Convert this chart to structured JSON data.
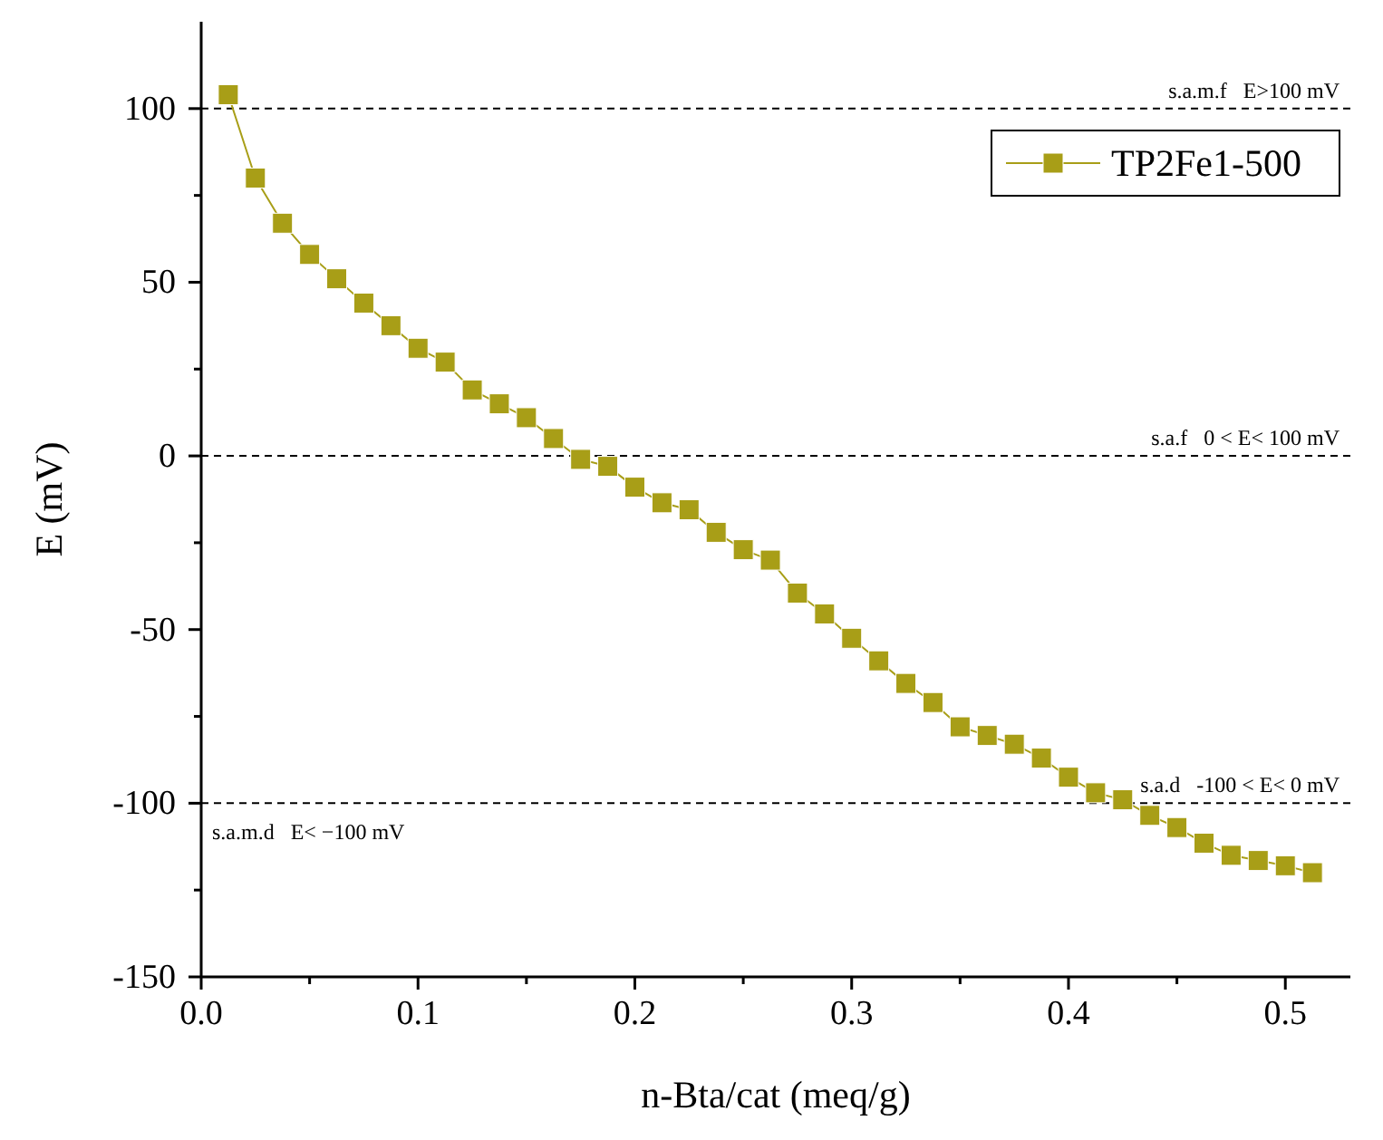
{
  "chart_data": {
    "type": "line",
    "xlabel": "n-Bta/cat (meq/g)",
    "ylabel": "E (mV)",
    "x": [
      0.0125,
      0.025,
      0.0375,
      0.05,
      0.0625,
      0.075,
      0.0875,
      0.1,
      0.1125,
      0.125,
      0.1375,
      0.15,
      0.1625,
      0.175,
      0.1875,
      0.2,
      0.2125,
      0.225,
      0.2375,
      0.25,
      0.2625,
      0.275,
      0.2875,
      0.3,
      0.3125,
      0.325,
      0.3375,
      0.35,
      0.3625,
      0.375,
      0.3875,
      0.4,
      0.4125,
      0.425,
      0.4375,
      0.45,
      0.4625,
      0.475,
      0.4875,
      0.5,
      0.5125
    ],
    "series": [
      {
        "name": "TP2Fe1-500",
        "color": "#a89e17",
        "values": [
          104,
          80,
          67,
          58,
          51,
          44,
          37.5,
          31,
          27,
          19,
          15,
          11,
          5,
          -1,
          -3,
          -9,
          -13.5,
          -15.5,
          -22,
          -27,
          -30,
          -39.5,
          -45.5,
          -52.5,
          -59,
          -65.5,
          -71,
          -78,
          -80.5,
          -83,
          -87,
          -92.5,
          -97,
          -99,
          -103.5,
          -107,
          -111.5,
          -115,
          -116.5,
          -118,
          -120
        ]
      }
    ],
    "xlim": [
      0,
      0.53
    ],
    "xticks": [
      {
        "value": 0,
        "label": "0.0"
      },
      {
        "value": 0.05,
        "label": null
      },
      {
        "value": 0.1,
        "label": "0.1"
      },
      {
        "value": 0.15,
        "label": null
      },
      {
        "value": 0.2,
        "label": "0.2"
      },
      {
        "value": 0.25,
        "label": null
      },
      {
        "value": 0.3,
        "label": "0.3"
      },
      {
        "value": 0.35,
        "label": null
      },
      {
        "value": 0.4,
        "label": "0.4"
      },
      {
        "value": 0.45,
        "label": null
      },
      {
        "value": 0.5,
        "label": "0.5"
      }
    ],
    "ylim": [
      -150,
      125
    ],
    "yticks": [
      -150,
      {
        "value": -125,
        "label": null
      },
      -100,
      {
        "value": -75,
        "label": null
      },
      -50,
      {
        "value": -25,
        "label": null
      },
      0,
      {
        "value": 25,
        "label": null
      },
      50,
      {
        "value": 75,
        "label": null
      },
      100
    ],
    "ref_lines": [
      {
        "axis": "y",
        "value": 100,
        "label": "s.a.m.f   E>100 mV",
        "color": "#000000",
        "line_style": "dashed"
      },
      {
        "axis": "y",
        "value": 0,
        "label": "s.a.f   0 < E< 100 mV",
        "color": "#000000",
        "line_style": "dashed"
      },
      {
        "axis": "y",
        "value": -100,
        "label": "s.a.d   -100 < E< 0 mV",
        "color": "#000000",
        "line_style": "dashed"
      }
    ],
    "annotations": [
      {
        "text": "s.a.m.d   E< −100 mV",
        "y": -100
      }
    ],
    "marker": "square",
    "line_style": "solid",
    "legend": "top right",
    "grid": false
  }
}
